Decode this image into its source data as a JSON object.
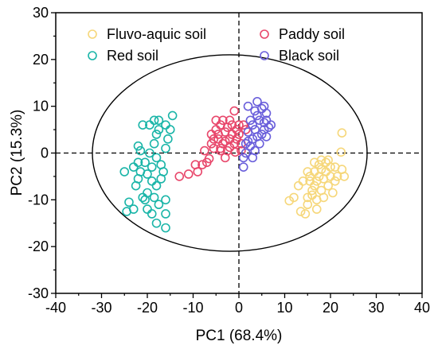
{
  "chart_data": {
    "type": "scatter",
    "xlabel": "PC1 (68.4%)",
    "ylabel": "PC2 (15.3%)",
    "xlim": [
      -40,
      40
    ],
    "ylim": [
      -30,
      30
    ],
    "xticks": [
      "-40",
      "-30",
      "-20",
      "-10",
      "0",
      "10",
      "20",
      "30",
      "40"
    ],
    "yticks": [
      "30",
      "20",
      "10",
      "0",
      "-10",
      "-20",
      "-30"
    ],
    "reference_lines": {
      "x": 0,
      "y": 0,
      "style": "dashed"
    },
    "confidence_ellipse": {
      "center": [
        -2,
        0
      ],
      "semi_axis_x": 30,
      "semi_axis_y": 21
    },
    "legend_position": "top, two columns",
    "series": [
      {
        "name": "Fluvo-aquic soil",
        "color": "#f6d77a",
        "points": [
          [
            22.5,
            4.3
          ],
          [
            22.3,
            0.2
          ],
          [
            22.5,
            -3.5
          ],
          [
            23,
            -5
          ],
          [
            21,
            -3
          ],
          [
            21.5,
            -5
          ],
          [
            21,
            -6
          ],
          [
            20,
            -3
          ],
          [
            20,
            -5
          ],
          [
            19.5,
            -7
          ],
          [
            19,
            -2
          ],
          [
            19,
            -4
          ],
          [
            18.5,
            -5.5
          ],
          [
            18,
            -8
          ],
          [
            18,
            -3.5
          ],
          [
            17.5,
            -5
          ],
          [
            17,
            -6
          ],
          [
            17,
            -10
          ],
          [
            17,
            -12
          ],
          [
            16.5,
            -4
          ],
          [
            16.5,
            -7
          ],
          [
            16,
            -8
          ],
          [
            16,
            -9
          ],
          [
            15.5,
            -5
          ],
          [
            15.5,
            -6
          ],
          [
            15,
            -4
          ],
          [
            15,
            -9.5
          ],
          [
            14.5,
            -13
          ],
          [
            13.5,
            -12.5
          ],
          [
            13,
            -7
          ],
          [
            12,
            -9.5
          ],
          [
            11,
            -10.2
          ],
          [
            18,
            -1.5
          ],
          [
            17.5,
            -2.5
          ],
          [
            16.5,
            -2
          ],
          [
            19.5,
            -1.5
          ],
          [
            20.5,
            -8.5
          ],
          [
            18.5,
            -9.5
          ],
          [
            15,
            -11
          ],
          [
            14,
            -6
          ]
        ]
      },
      {
        "name": "Paddy soil",
        "color": "#e8476b",
        "points": [
          [
            -13,
            -5
          ],
          [
            -11,
            -4.5
          ],
          [
            -9,
            -4
          ],
          [
            -8,
            -2.5
          ],
          [
            -7,
            -2
          ],
          [
            -6.5,
            -1.2
          ],
          [
            -6,
            2
          ],
          [
            -5.5,
            3
          ],
          [
            -5,
            5
          ],
          [
            -5,
            7
          ],
          [
            -4.5,
            4
          ],
          [
            -4,
            6
          ],
          [
            -4,
            1
          ],
          [
            -3.5,
            7
          ],
          [
            -3,
            4.5
          ],
          [
            -3,
            2.5
          ],
          [
            -2.5,
            5.5
          ],
          [
            -2,
            3
          ],
          [
            -2,
            1.2
          ],
          [
            -1.5,
            6
          ],
          [
            -1.5,
            4
          ],
          [
            -1,
            9
          ],
          [
            -1,
            2
          ],
          [
            -0.5,
            5
          ],
          [
            -0.5,
            3
          ],
          [
            0,
            6
          ],
          [
            0,
            4
          ],
          [
            0.5,
            2
          ],
          [
            1,
            6
          ],
          [
            1.5,
            5
          ],
          [
            -5.5,
            1
          ],
          [
            -4.5,
            3
          ],
          [
            -3.5,
            2
          ],
          [
            -2.5,
            0.5
          ],
          [
            -0.8,
            0.2
          ],
          [
            0.5,
            0.5
          ],
          [
            -6,
            4
          ],
          [
            -4,
            0.5
          ],
          [
            -3,
            -1
          ],
          [
            -7.5,
            0.5
          ],
          [
            -9.5,
            -2.5
          ],
          [
            -2,
            7
          ]
        ]
      },
      {
        "name": "Red soil",
        "color": "#1ab5a8",
        "points": [
          [
            -14.5,
            8
          ],
          [
            -15,
            5
          ],
          [
            -16,
            1
          ],
          [
            -16.5,
            -4
          ],
          [
            -17,
            -5.5
          ],
          [
            -17.5,
            7
          ],
          [
            -17.5,
            5
          ],
          [
            -17.5,
            -11
          ],
          [
            -18,
            4
          ],
          [
            -18,
            -1
          ],
          [
            -18,
            -7
          ],
          [
            -18.5,
            7
          ],
          [
            -18.5,
            2
          ],
          [
            -19,
            -3
          ],
          [
            -19,
            -6
          ],
          [
            -19.5,
            6
          ],
          [
            -19.5,
            0
          ],
          [
            -20,
            -4.5
          ],
          [
            -20,
            -8.5
          ],
          [
            -20,
            -12
          ],
          [
            -20.5,
            -2
          ],
          [
            -21,
            6
          ],
          [
            -21,
            -9.5
          ],
          [
            -21.5,
            -4
          ],
          [
            -22,
            1.5
          ],
          [
            -22,
            -2
          ],
          [
            -22.5,
            -7
          ],
          [
            -23,
            -3
          ],
          [
            -23,
            -12
          ],
          [
            -24,
            -10.5
          ],
          [
            -24.5,
            -12.5
          ],
          [
            -25,
            -4
          ],
          [
            -16,
            -10
          ],
          [
            -16,
            -13
          ],
          [
            -16,
            -16
          ],
          [
            -17,
            -2.5
          ],
          [
            -18.5,
            -9.5
          ],
          [
            -19,
            -13
          ],
          [
            -20.5,
            -10
          ],
          [
            -15.5,
            3
          ],
          [
            -16,
            6
          ],
          [
            -21.5,
            0.5
          ],
          [
            -18,
            -15
          ],
          [
            -22,
            -5.5
          ]
        ]
      },
      {
        "name": "Black soil",
        "color": "#6a5fdb",
        "points": [
          [
            1,
            -3
          ],
          [
            1,
            -1
          ],
          [
            1.5,
            0
          ],
          [
            1.5,
            2
          ],
          [
            2,
            4.5
          ],
          [
            2,
            10
          ],
          [
            2.5,
            1.5
          ],
          [
            3,
            3
          ],
          [
            3,
            6
          ],
          [
            3.5,
            0.5
          ],
          [
            3.5,
            5
          ],
          [
            4,
            8
          ],
          [
            4,
            11
          ],
          [
            4.5,
            2
          ],
          [
            4.5,
            7
          ],
          [
            5,
            4
          ],
          [
            5,
            9.5
          ],
          [
            5.5,
            5
          ],
          [
            5.5,
            10
          ],
          [
            6,
            3.5
          ],
          [
            6,
            7
          ],
          [
            6.5,
            5.5
          ],
          [
            7,
            6
          ],
          [
            3,
            -1
          ],
          [
            2.5,
            7
          ],
          [
            4,
            3.5
          ],
          [
            5.5,
            6.5
          ],
          [
            3.5,
            9
          ],
          [
            2,
            2.5
          ],
          [
            6,
            8.5
          ]
        ]
      }
    ]
  }
}
